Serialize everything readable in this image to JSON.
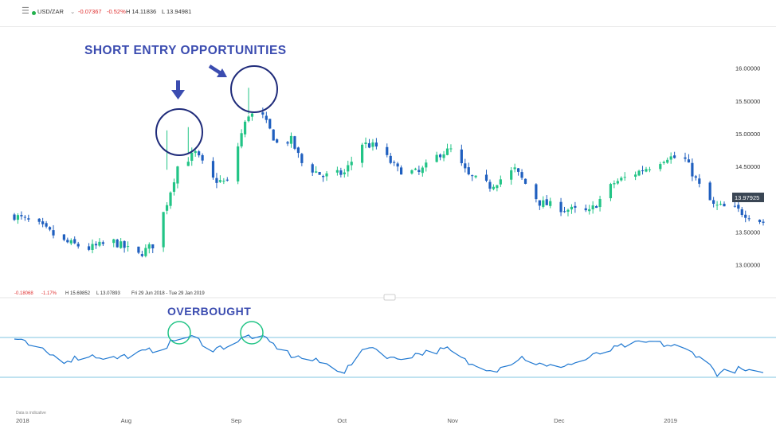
{
  "header": {
    "menu_icon": "hamburger-icon",
    "status_color": "#22b14c",
    "symbol": "USD/ZAR",
    "dropdown_icon": "chevron-down-icon",
    "change": "-0.07367",
    "change_pct": "-0.52%",
    "high": "H 14.11836",
    "low": "L 13.94981"
  },
  "colors": {
    "up": "#22c486",
    "down": "#1f5fbf",
    "annotation": "#3b4cb0",
    "circle_price": "#1f2b7a",
    "circle_indicator": "#22c486",
    "indicator_line": "#1f78d1",
    "band": "#7fc6e0"
  },
  "annotations": {
    "short_entry": "SHORT ENTRY OPPORTUNITIES",
    "overbought": "OVERBOUGHT"
  },
  "info_bar": {
    "change": "-0.18068",
    "change_pct": "-1.17%",
    "high": "H 15.69852",
    "low": "L 13.07893",
    "range": "Fri 29 Jun 2018 - Tue 29 Jan 2019"
  },
  "last_price_label": "13.97925",
  "footer_note": "Data is indicative",
  "chart_data": {
    "type": "candlestick",
    "title": "USD/ZAR",
    "x_range": [
      "2018-07-02",
      "2019-01-29"
    ],
    "ylim": [
      12.85,
      16.25
    ],
    "y_ticks": [
      "16.00000",
      "15.50000",
      "15.00000",
      "14.50000",
      "14.00000",
      "13.50000",
      "13.00000"
    ],
    "y_tick_values": [
      16.0,
      15.5,
      15.0,
      14.5,
      14.0,
      13.5,
      13.0
    ],
    "x_ticks": [
      "2018",
      "Aug",
      "Sep",
      "Oct",
      "Nov",
      "Dec",
      "2019"
    ],
    "x_tick_dates": [
      "2018-07-01",
      "2018-08-01",
      "2018-09-01",
      "2018-10-01",
      "2018-11-01",
      "2018-12-01",
      "2019-01-01"
    ],
    "series": [
      {
        "close_points": [
          [
            "2018-07-02",
            13.75
          ],
          [
            "2018-07-09",
            13.6
          ],
          [
            "2018-07-16",
            13.35
          ],
          [
            "2018-07-23",
            13.25
          ],
          [
            "2018-07-30",
            13.35
          ],
          [
            "2018-08-06",
            13.15
          ],
          [
            "2018-08-10",
            13.3
          ],
          [
            "2018-08-14",
            13.95
          ],
          [
            "2018-08-17",
            14.5
          ],
          [
            "2018-08-22",
            14.7
          ],
          [
            "2018-08-27",
            14.3
          ],
          [
            "2018-08-31",
            14.25
          ],
          [
            "2018-09-04",
            15.0
          ],
          [
            "2018-09-06",
            15.3
          ],
          [
            "2018-09-10",
            15.25
          ],
          [
            "2018-09-14",
            14.85
          ],
          [
            "2018-09-18",
            14.9
          ],
          [
            "2018-09-21",
            14.55
          ],
          [
            "2018-09-27",
            14.35
          ],
          [
            "2018-10-03",
            14.4
          ],
          [
            "2018-10-08",
            14.85
          ],
          [
            "2018-10-12",
            14.8
          ],
          [
            "2018-10-18",
            14.45
          ],
          [
            "2018-10-24",
            14.4
          ],
          [
            "2018-10-30",
            14.7
          ],
          [
            "2018-11-02",
            14.75
          ],
          [
            "2018-11-07",
            14.35
          ],
          [
            "2018-11-13",
            14.2
          ],
          [
            "2018-11-20",
            14.45
          ],
          [
            "2018-11-27",
            13.95
          ],
          [
            "2018-12-04",
            13.85
          ],
          [
            "2018-12-11",
            13.8
          ],
          [
            "2018-12-18",
            14.25
          ],
          [
            "2018-12-24",
            14.4
          ],
          [
            "2018-12-28",
            14.5
          ],
          [
            "2019-01-02",
            14.65
          ],
          [
            "2019-01-07",
            14.6
          ],
          [
            "2019-01-11",
            14.2
          ],
          [
            "2019-01-15",
            13.9
          ],
          [
            "2019-01-21",
            13.85
          ],
          [
            "2019-01-25",
            13.75
          ],
          [
            "2019-01-29",
            13.65
          ]
        ]
      }
    ],
    "indicator": {
      "type": "line",
      "bands": [
        "upper",
        "lower"
      ],
      "points": [
        [
          "2018-07-02",
          0.97
        ],
        [
          "2018-07-09",
          0.7
        ],
        [
          "2018-07-16",
          0.42
        ],
        [
          "2018-07-23",
          0.55
        ],
        [
          "2018-07-30",
          0.48
        ],
        [
          "2018-08-06",
          0.6
        ],
        [
          "2018-08-13",
          0.75
        ],
        [
          "2018-08-18",
          1.03
        ],
        [
          "2018-08-22",
          0.98
        ],
        [
          "2018-08-27",
          0.7
        ],
        [
          "2018-09-01",
          0.82
        ],
        [
          "2018-09-06",
          1.04
        ],
        [
          "2018-09-10",
          0.98
        ],
        [
          "2018-09-18",
          0.55
        ],
        [
          "2018-09-26",
          0.38
        ],
        [
          "2018-10-03",
          0.15
        ],
        [
          "2018-10-10",
          0.8
        ],
        [
          "2018-10-17",
          0.45
        ],
        [
          "2018-10-24",
          0.6
        ],
        [
          "2018-11-01",
          0.7
        ],
        [
          "2018-11-08",
          0.3
        ],
        [
          "2018-11-15",
          0.2
        ],
        [
          "2018-11-22",
          0.5
        ],
        [
          "2018-11-29",
          0.25
        ],
        [
          "2018-12-07",
          0.35
        ],
        [
          "2018-12-14",
          0.6
        ],
        [
          "2018-12-21",
          0.8
        ],
        [
          "2018-12-28",
          0.88
        ],
        [
          "2019-01-04",
          0.78
        ],
        [
          "2019-01-11",
          0.55
        ],
        [
          "2019-01-16",
          0.1
        ],
        [
          "2019-01-22",
          0.2
        ],
        [
          "2019-01-29",
          0.05
        ]
      ]
    }
  }
}
